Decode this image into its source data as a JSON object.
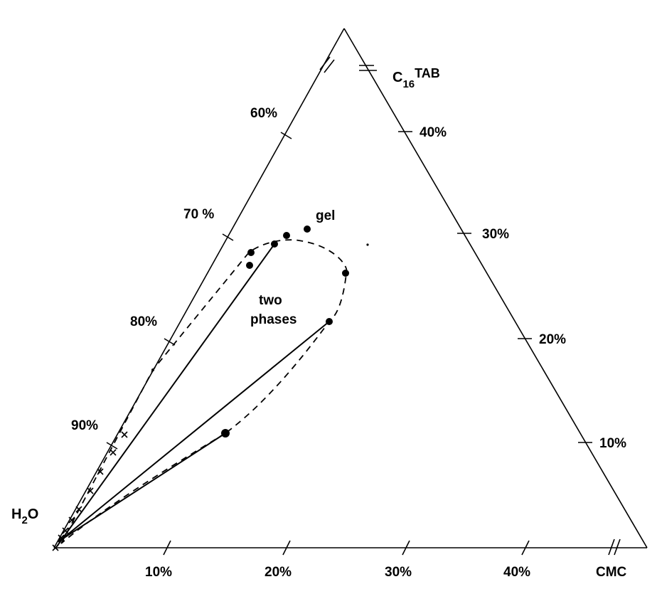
{
  "diagram": {
    "vertex_labels": {
      "top_main": "C",
      "top_sub": "16",
      "top_sup": "TAB",
      "left_main": "H",
      "left_sub": "2",
      "left_tail": "O",
      "right": "CMC"
    },
    "left_edge_ticks": [
      "60%",
      "70 %",
      "80%",
      "90%"
    ],
    "right_edge_ticks": [
      "40%",
      "30%",
      "20%",
      "10%"
    ],
    "bottom_ticks": [
      "10%",
      "20%",
      "30%",
      "40%"
    ],
    "region_labels": {
      "gel": "gel",
      "two_phases_line1": "two",
      "two_phases_line2": "phases"
    },
    "notes": "Ternary phase diagram; axis breaks shown as double slashes near C16TAB and CMC vertices."
  }
}
